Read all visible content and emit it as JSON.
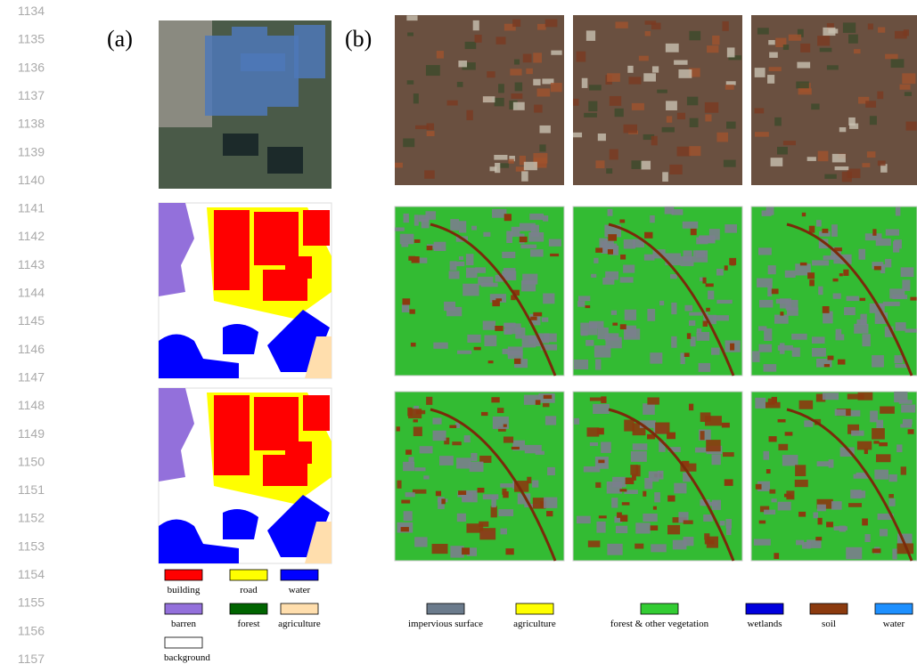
{
  "line_numbers": [
    1134,
    1135,
    1136,
    1137,
    1138,
    1139,
    1140,
    1141,
    1142,
    1143,
    1144,
    1145,
    1146,
    1147,
    1148,
    1149,
    1150,
    1151,
    1152,
    1153,
    1154,
    1155,
    1156,
    1157
  ],
  "panel_a": {
    "label": "(a)",
    "legend": [
      {
        "label": "building",
        "color": "#ff0000"
      },
      {
        "label": "road",
        "color": "#ffff00"
      },
      {
        "label": "water",
        "color": "#0000ff"
      },
      {
        "label": "barren",
        "color": "#9370db"
      },
      {
        "label": "forest",
        "color": "#006400"
      },
      {
        "label": "agriculture",
        "color": "#ffdead"
      },
      {
        "label": "background",
        "color": "#ffffff"
      }
    ]
  },
  "panel_b": {
    "label": "(b)",
    "legend": [
      {
        "label": "impervious surface",
        "color": "#6b7b8c"
      },
      {
        "label": "agriculture",
        "color": "#ffff00"
      },
      {
        "label": "forest & other vegetation",
        "color": "#33cc33"
      },
      {
        "label": "wetlands",
        "color": "#0000dd"
      },
      {
        "label": "soil",
        "color": "#8b3a0e"
      },
      {
        "label": "water",
        "color": "#1e90ff"
      }
    ]
  }
}
